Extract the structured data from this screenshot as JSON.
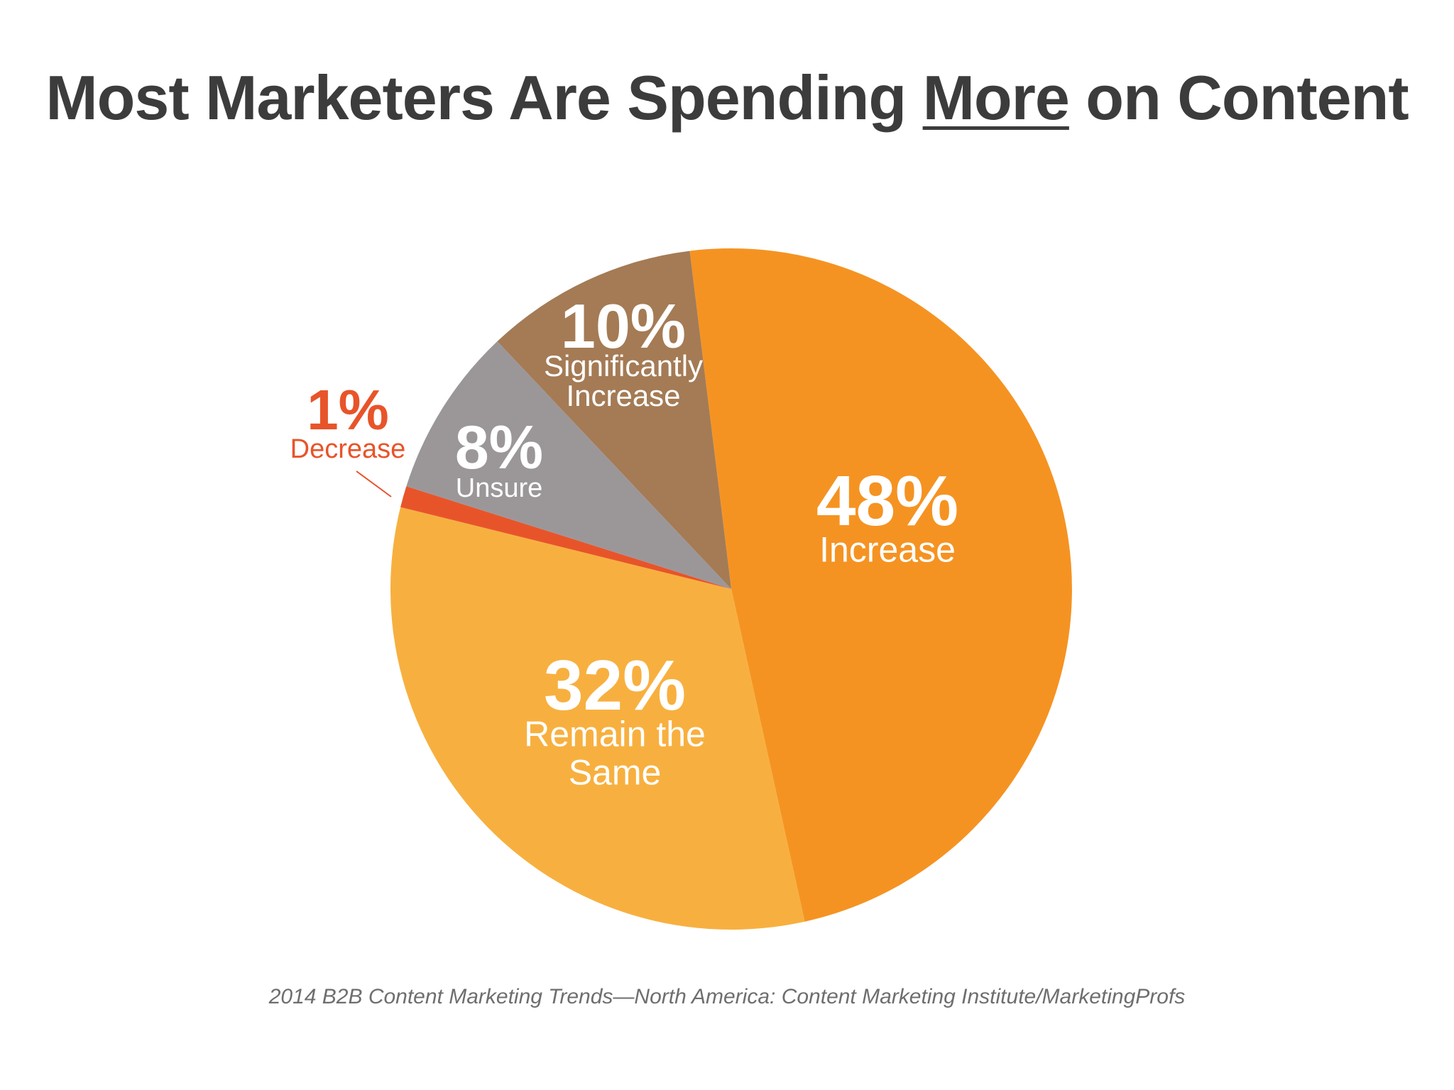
{
  "title": {
    "before": "Most Marketers Are Spending ",
    "emphasis": "More",
    "after": " on Content"
  },
  "source": "2014 B2B Content Marketing Trends—North America: Content Marketing Institute/MarketingProfs",
  "chart_data": {
    "type": "pie",
    "title": "",
    "slices": [
      {
        "label": "Increase",
        "value": 48,
        "value_label": "48%",
        "color": "#f59322",
        "label_color": "#ffffff"
      },
      {
        "label": "Remain the Same",
        "value": 32,
        "value_label": "32%",
        "color": "#f7b03f",
        "label_color": "#ffffff"
      },
      {
        "label": "Decrease",
        "value": 1,
        "value_label": "1%",
        "color": "#e8542a",
        "label_color": "#e8542a"
      },
      {
        "label": "Unsure",
        "value": 8,
        "value_label": "8%",
        "color": "#9b9799",
        "label_color": "#ffffff"
      },
      {
        "label": "Significantly Increase",
        "value": 10,
        "value_label": "10%",
        "color": "#a47b55",
        "label_color": "#ffffff"
      }
    ]
  }
}
